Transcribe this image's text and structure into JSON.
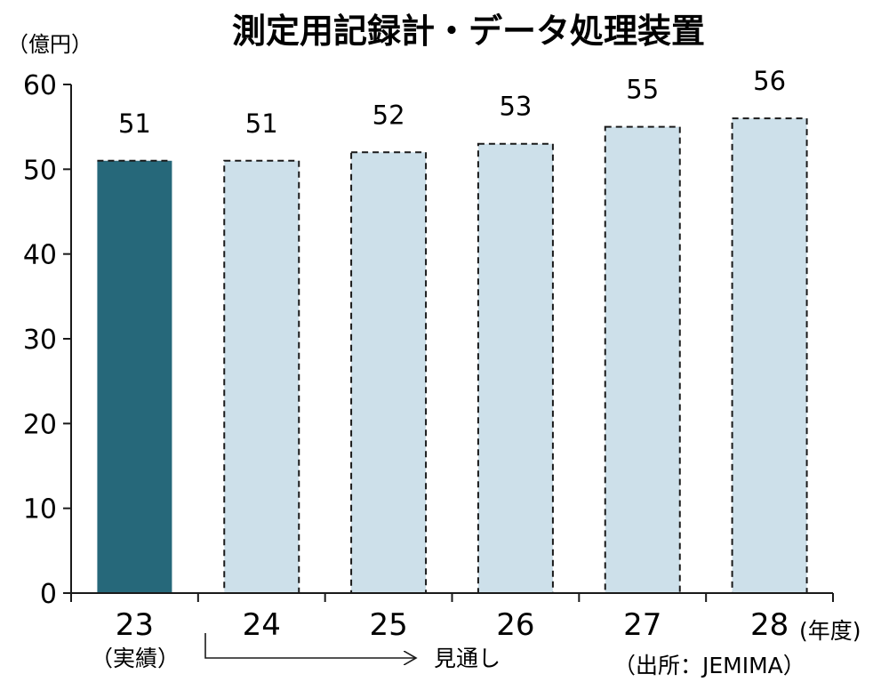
{
  "chart_data": {
    "type": "bar",
    "title": "測定用記録計・データ処理装置",
    "unit_label": "（億円）",
    "x_unit": "(年度)",
    "categories": [
      "23",
      "24",
      "25",
      "26",
      "27",
      "28"
    ],
    "values": [
      51,
      51,
      52,
      53,
      55,
      56
    ],
    "bar_status": [
      "actual",
      "forecast",
      "forecast",
      "forecast",
      "forecast",
      "forecast"
    ],
    "ylim": [
      0,
      60
    ],
    "yticks": [
      0,
      10,
      20,
      30,
      40,
      50,
      60
    ],
    "actual_note": "（実績）",
    "forecast_note": "見通し",
    "source": "（出所：JEMIMA）",
    "grid": false,
    "colors": {
      "actual": "#26687a",
      "forecast": "#cde0ea",
      "axis": "#1a1a1a"
    }
  }
}
